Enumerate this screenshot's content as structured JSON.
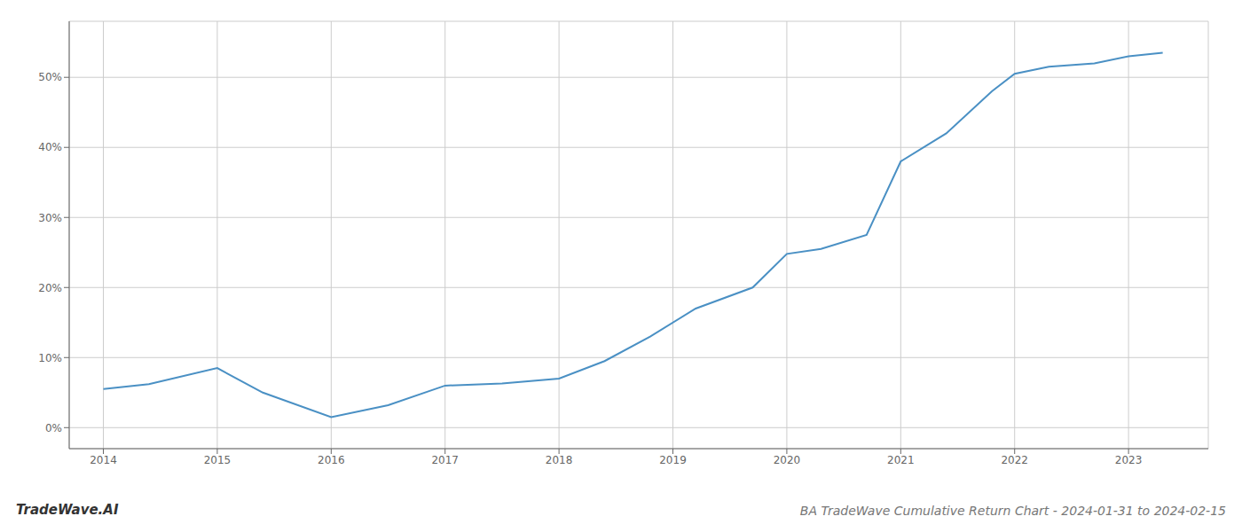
{
  "chart_data": {
    "type": "line",
    "title": "BA TradeWave Cumulative Return Chart - 2024-01-31 to 2024-02-15",
    "annotations": [
      "TradeWave.AI"
    ],
    "x": [
      2014.0,
      2014.4,
      2015.0,
      2015.4,
      2016.0,
      2016.5,
      2017.0,
      2017.5,
      2018.0,
      2018.4,
      2018.8,
      2019.2,
      2019.7,
      2020.0,
      2020.3,
      2020.7,
      2021.0,
      2021.4,
      2021.8,
      2022.0,
      2022.3,
      2022.7,
      2023.0,
      2023.3
    ],
    "values": [
      5.5,
      6.2,
      8.5,
      5.0,
      1.5,
      3.2,
      6.0,
      6.3,
      7.0,
      9.5,
      13.0,
      17.0,
      20.0,
      24.8,
      25.5,
      27.5,
      38.0,
      42.0,
      48.0,
      50.5,
      51.5,
      52.0,
      53.0,
      53.5
    ],
    "color": "#4a90c4",
    "xlim": [
      2013.7,
      2023.7
    ],
    "ylim": [
      -3,
      58
    ],
    "xticks": [
      2014,
      2015,
      2016,
      2017,
      2018,
      2019,
      2020,
      2021,
      2022,
      2023
    ],
    "yticks": [
      {
        "value": 0,
        "label": "0%"
      },
      {
        "value": 10,
        "label": "10%"
      },
      {
        "value": 20,
        "label": "20%"
      },
      {
        "value": 30,
        "label": "30%"
      },
      {
        "value": 40,
        "label": "40%"
      },
      {
        "value": 50,
        "label": "50%"
      }
    ],
    "grid": true
  }
}
